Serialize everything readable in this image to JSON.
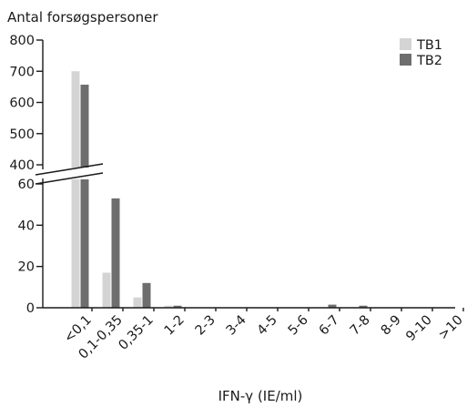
{
  "chart_data": {
    "type": "bar",
    "title": "",
    "ylabel": "Antal forsøgspersoner",
    "xlabel": "IFN-γ (IE/ml)",
    "categories": [
      "<0,1",
      "0,1-0,35",
      "0,35-1",
      "1-2",
      "2-3",
      "3-4",
      "4-5",
      "5-6",
      "6-7",
      "7-8",
      "8-9",
      "9-10",
      ">10"
    ],
    "series": [
      {
        "name": "TB1",
        "color": "#d4d4d4",
        "values": [
          700,
          17,
          5,
          1,
          0,
          0,
          0,
          0,
          0,
          0,
          0,
          0,
          0
        ]
      },
      {
        "name": "TB2",
        "color": "#6e6e6e",
        "values": [
          657,
          53,
          12,
          1,
          0,
          0,
          0,
          0,
          1.5,
          1,
          0,
          0,
          0
        ]
      }
    ],
    "yaxis": {
      "broken": true,
      "lower_range": [
        0,
        60
      ],
      "upper_range": [
        400,
        800
      ],
      "lower_ticks": [
        0,
        20,
        40,
        60
      ],
      "upper_ticks": [
        400,
        500,
        600,
        700,
        800
      ]
    },
    "legend": "top-right"
  }
}
